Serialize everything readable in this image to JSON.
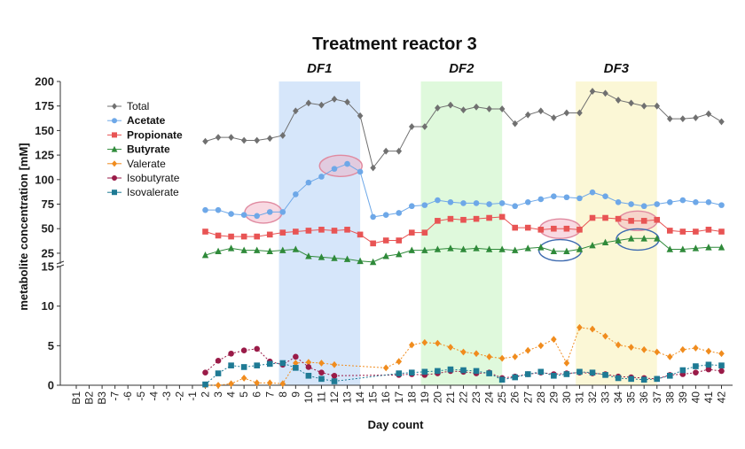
{
  "chart_data": {
    "type": "line",
    "title": "Treatment reactor 3",
    "xlabel": "Day count",
    "ylabel": "metabolite concentration [mM]",
    "y_axis_break": true,
    "ylim_lower": [
      0,
      15
    ],
    "ylim_upper": [
      15,
      200
    ],
    "yticks_lower": [
      "0",
      "5",
      "10",
      "15"
    ],
    "yticks_upper": [
      "25",
      "50",
      "75",
      "100",
      "125",
      "150",
      "175",
      "200"
    ],
    "categories": [
      "B1",
      "B2",
      "B3",
      "-7",
      "-6",
      "-5",
      "-4",
      "-3",
      "-2",
      "-1",
      "2",
      "3",
      "4",
      "5",
      "6",
      "7",
      "8",
      "9",
      "10",
      "11",
      "12",
      "13",
      "14",
      "15",
      "16",
      "17",
      "18",
      "19",
      "20",
      "21",
      "22",
      "23",
      "24",
      "25",
      "26",
      "27",
      "28",
      "29",
      "30",
      "31",
      "32",
      "33",
      "34",
      "35",
      "36",
      "37",
      "38",
      "39",
      "40",
      "41",
      "42"
    ],
    "periods": [
      {
        "label": "DF1",
        "from": "8",
        "to": "14",
        "color": "#d6e6fa"
      },
      {
        "label": "DF2",
        "from": "19",
        "to": "25",
        "color": "#dff9dc"
      },
      {
        "label": "DF3",
        "from": "31",
        "to": "37",
        "color": "#fbf7d6"
      }
    ],
    "legend_position": "upper-left",
    "series": [
      {
        "name": "Total",
        "color": "#707070",
        "marker": "diamond",
        "bold": false,
        "x": [
          "2",
          "3",
          "4",
          "5",
          "6",
          "7",
          "8",
          "9",
          "10",
          "11",
          "12",
          "13",
          "14",
          "15",
          "16",
          "17",
          "18",
          "19",
          "20",
          "21",
          "22",
          "23",
          "24",
          "25",
          "26",
          "27",
          "28",
          "29",
          "30",
          "31",
          "32",
          "33",
          "34",
          "35",
          "36",
          "37",
          "38",
          "39",
          "40",
          "41",
          "42"
        ],
        "values": [
          139,
          143,
          143,
          140,
          140,
          142,
          145,
          170,
          178,
          176,
          182,
          179,
          165,
          112,
          129,
          129,
          154,
          154,
          173,
          176,
          171,
          174,
          172,
          172,
          157,
          166,
          170,
          163,
          168,
          168,
          190,
          188,
          181,
          178,
          175,
          175,
          162,
          162,
          163,
          167,
          159
        ]
      },
      {
        "name": "Acetate",
        "color": "#6ea8e8",
        "marker": "circle",
        "bold": true,
        "x": [
          "2",
          "3",
          "4",
          "5",
          "6",
          "7",
          "8",
          "9",
          "10",
          "11",
          "12",
          "13",
          "14",
          "15",
          "16",
          "17",
          "18",
          "19",
          "20",
          "21",
          "22",
          "23",
          "24",
          "25",
          "26",
          "27",
          "28",
          "29",
          "30",
          "31",
          "32",
          "33",
          "34",
          "35",
          "36",
          "37",
          "38",
          "39",
          "40",
          "41",
          "42"
        ],
        "values": [
          69,
          69,
          65,
          64,
          63,
          67,
          67,
          85,
          97,
          103,
          111,
          116,
          108,
          62,
          64,
          66,
          73,
          74,
          79,
          77,
          76,
          76,
          75,
          76,
          73,
          77,
          80,
          83,
          82,
          81,
          87,
          83,
          77,
          75,
          73,
          75,
          77,
          79,
          77,
          77,
          74
        ]
      },
      {
        "name": "Propionate",
        "color": "#e85454",
        "marker": "square",
        "bold": true,
        "x": [
          "2",
          "3",
          "4",
          "5",
          "6",
          "7",
          "8",
          "9",
          "10",
          "11",
          "12",
          "13",
          "14",
          "15",
          "16",
          "17",
          "18",
          "19",
          "20",
          "21",
          "22",
          "23",
          "24",
          "25",
          "26",
          "27",
          "28",
          "29",
          "30",
          "31",
          "32",
          "33",
          "34",
          "35",
          "36",
          "37",
          "38",
          "39",
          "40",
          "41",
          "42"
        ],
        "values": [
          47,
          43,
          42,
          42,
          42,
          44,
          46,
          47,
          48,
          49,
          48,
          49,
          44,
          35,
          38,
          38,
          46,
          46,
          58,
          60,
          59,
          60,
          61,
          62,
          51,
          51,
          49,
          50,
          50,
          49,
          61,
          61,
          60,
          58,
          58,
          59,
          48,
          47,
          47,
          49,
          47
        ]
      },
      {
        "name": "Butyrate",
        "color": "#2f8a3a",
        "marker": "triangle",
        "bold": true,
        "x": [
          "2",
          "3",
          "4",
          "5",
          "6",
          "7",
          "8",
          "9",
          "10",
          "11",
          "12",
          "13",
          "14",
          "15",
          "16",
          "17",
          "18",
          "19",
          "20",
          "21",
          "22",
          "23",
          "24",
          "25",
          "26",
          "27",
          "28",
          "29",
          "30",
          "31",
          "32",
          "33",
          "34",
          "35",
          "36",
          "37",
          "38",
          "39",
          "40",
          "41",
          "42"
        ],
        "values": [
          23,
          27,
          30,
          28,
          28,
          27,
          28,
          29,
          22,
          21,
          20,
          19,
          17,
          16,
          22,
          24,
          28,
          28,
          29,
          30,
          29,
          30,
          29,
          29,
          28,
          30,
          31,
          27,
          27,
          29,
          33,
          36,
          38,
          40,
          40,
          40,
          29,
          29,
          30,
          31,
          31
        ]
      },
      {
        "name": "Valerate",
        "color": "#f08c1e",
        "marker": "diamond",
        "bold": false,
        "x": [
          "2",
          "3",
          "4",
          "5",
          "6",
          "7",
          "8",
          "9",
          "10",
          "11",
          "12",
          "13",
          "14",
          "15",
          "16",
          "17",
          "18",
          "19",
          "20",
          "21",
          "22",
          "23",
          "24",
          "25",
          "26",
          "27",
          "28",
          "29",
          "30",
          "31",
          "32",
          "33",
          "34",
          "35",
          "36",
          "37",
          "38",
          "39",
          "40",
          "41",
          "42"
        ],
        "values": [
          0,
          0,
          0.2,
          0.9,
          0.3,
          0.3,
          0.2,
          2.8,
          2.9,
          2.8,
          2.6,
          null,
          null,
          null,
          2.2,
          3.0,
          5.1,
          5.4,
          5.3,
          4.8,
          4.2,
          4.0,
          3.6,
          3.4,
          3.6,
          4.4,
          5.0,
          5.8,
          2.8,
          7.3,
          7.1,
          6.2,
          5.1,
          4.8,
          4.5,
          4.2,
          3.6,
          4.5,
          4.7,
          4.3,
          4.0
        ]
      },
      {
        "name": "Isobutyrate",
        "color": "#9a1b48",
        "marker": "circle",
        "bold": false,
        "x": [
          "2",
          "3",
          "4",
          "5",
          "6",
          "7",
          "8",
          "9",
          "10",
          "11",
          "12",
          "13",
          "14",
          "15",
          "16",
          "17",
          "18",
          "19",
          "20",
          "21",
          "22",
          "23",
          "24",
          "25",
          "26",
          "27",
          "28",
          "29",
          "30",
          "31",
          "32",
          "33",
          "34",
          "35",
          "36",
          "37",
          "38",
          "39",
          "40",
          "41",
          "42"
        ],
        "values": [
          1.6,
          3.1,
          4.0,
          4.4,
          4.6,
          3.0,
          2.6,
          3.6,
          2.3,
          1.6,
          1.2,
          null,
          null,
          null,
          null,
          1.3,
          1.4,
          1.3,
          1.5,
          1.8,
          1.7,
          1.5,
          1.6,
          0.9,
          1.1,
          1.4,
          1.6,
          1.4,
          1.5,
          1.6,
          1.5,
          1.4,
          1.1,
          1.0,
          0.9,
          0.8,
          1.3,
          1.4,
          1.6,
          2.0,
          1.8
        ]
      },
      {
        "name": "Isovalerate",
        "color": "#1e7a94",
        "marker": "square",
        "bold": false,
        "x": [
          "2",
          "3",
          "4",
          "5",
          "6",
          "7",
          "8",
          "9",
          "10",
          "11",
          "12",
          "13",
          "14",
          "15",
          "16",
          "17",
          "18",
          "19",
          "20",
          "21",
          "22",
          "23",
          "24",
          "25",
          "26",
          "27",
          "28",
          "29",
          "30",
          "31",
          "32",
          "33",
          "34",
          "35",
          "36",
          "37",
          "38",
          "39",
          "40",
          "41",
          "42"
        ],
        "values": [
          0.1,
          1.5,
          2.5,
          2.3,
          2.5,
          2.7,
          2.8,
          2.2,
          1.2,
          0.8,
          0.5,
          null,
          null,
          null,
          null,
          1.5,
          1.6,
          1.7,
          1.8,
          2.0,
          1.9,
          1.8,
          1.5,
          0.7,
          1.0,
          1.4,
          1.7,
          1.2,
          1.4,
          1.7,
          1.6,
          1.3,
          0.9,
          0.8,
          0.7,
          0.8,
          1.2,
          1.9,
          2.4,
          2.6,
          2.5
        ]
      }
    ]
  }
}
